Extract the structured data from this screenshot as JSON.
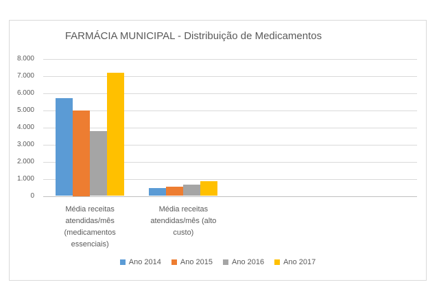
{
  "chart_data": {
    "type": "bar",
    "title": "FARMÁCIA MUNICIPAL - Distribuição de Medicamentos",
    "categories": [
      "Média receitas atendidas/mês (medicamentos essenciais)",
      "Média receitas atendidas/mês (alto custo)"
    ],
    "categories_wrapped": [
      "Média receitas\natendidas/mês\n(medicamentos\nessenciais)",
      "Média receitas\natendidas/mês (alto\ncusto)"
    ],
    "series": [
      {
        "name": "Ano 2014",
        "color": "#5B9BD5",
        "values": [
          5700,
          450
        ]
      },
      {
        "name": "Ano 2015",
        "color": "#ED7D31",
        "values": [
          5000,
          550
        ]
      },
      {
        "name": "Ano 2016",
        "color": "#A5A5A5",
        "values": [
          3800,
          650
        ]
      },
      {
        "name": "Ano 2017",
        "color": "#FFC000",
        "values": [
          7200,
          850
        ]
      }
    ],
    "ylim": [
      0,
      8000
    ],
    "ytick_step": 1000,
    "ytick_labels": [
      "0",
      "1.000",
      "2.000",
      "3.000",
      "4.000",
      "5.000",
      "6.000",
      "7.000",
      "8.000"
    ],
    "xlabel": "",
    "ylabel": "",
    "grid": true,
    "legend_position": "bottom",
    "style": {
      "text_color": "#595959",
      "gridline_color": "#D9D9D9",
      "axis_line_color": "#BFBFBF",
      "frame_border_color": "#D9D9D9",
      "background": "#FFFFFF"
    }
  }
}
